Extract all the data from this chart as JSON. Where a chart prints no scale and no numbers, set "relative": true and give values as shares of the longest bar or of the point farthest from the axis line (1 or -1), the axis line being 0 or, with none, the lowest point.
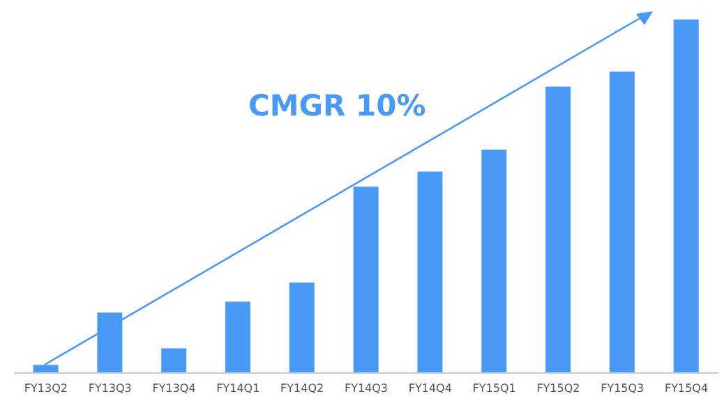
{
  "chart_data": {
    "type": "bar",
    "relative": true,
    "categories": [
      "FY13Q2",
      "FY13Q3",
      "FY13Q4",
      "FY14Q1",
      "FY14Q2",
      "FY14Q3",
      "FY14Q4",
      "FY15Q1",
      "FY15Q2",
      "FY15Q3",
      "FY15Q4"
    ],
    "values": [
      0.023,
      0.171,
      0.07,
      0.202,
      0.256,
      0.527,
      0.57,
      0.632,
      0.81,
      0.853,
      1
    ],
    "color": "#4a9af5",
    "annotations": [
      "CMGR 10%"
    ]
  }
}
